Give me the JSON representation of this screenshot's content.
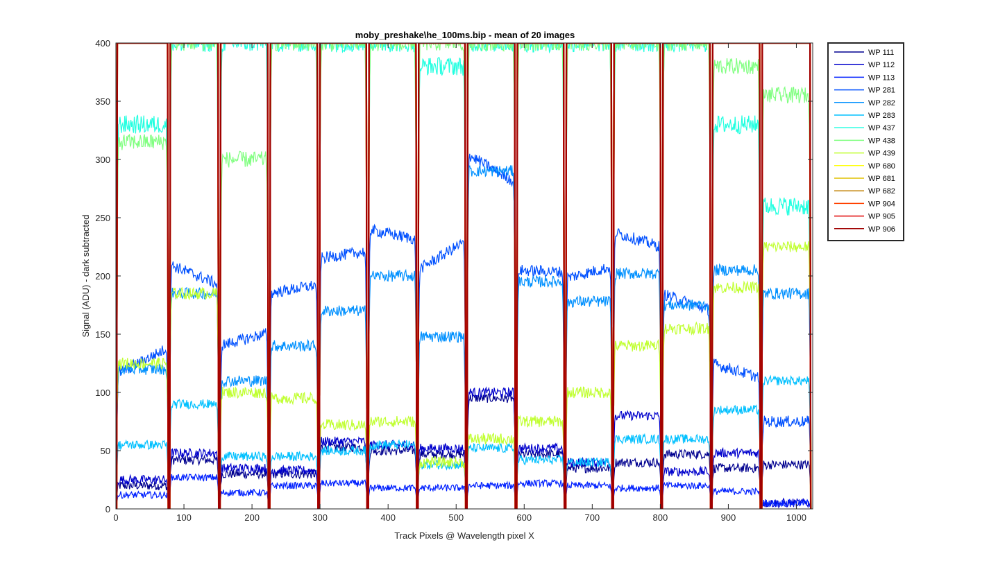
{
  "chart_data": {
    "type": "line",
    "title": "moby_preshake\\he_100ms.bip - mean of 20 images",
    "xlabel": "Track Pixels @ Wavelength pixel X",
    "ylabel": "Signal (ADU) - dark subtracted",
    "xlim": [
      0,
      1024
    ],
    "ylim": [
      0,
      400
    ],
    "xticks": [
      0,
      100,
      200,
      300,
      400,
      500,
      600,
      700,
      800,
      900,
      1000
    ],
    "yticks": [
      0,
      50,
      100,
      150,
      200,
      250,
      300,
      350,
      400
    ],
    "grid": false,
    "legend_position": "outside-right-top",
    "track_boundaries": [
      0,
      78,
      152,
      225,
      298,
      370,
      443,
      515,
      588,
      660,
      730,
      802,
      875,
      948,
      1022
    ],
    "series": [
      {
        "name": "WP 111",
        "color": "#00008f",
        "levels": [
          20,
          42,
          30,
          30,
          53,
          50,
          47,
          95,
          47,
          35,
          40,
          47,
          35,
          38
        ],
        "noise": 4
      },
      {
        "name": "WP 112",
        "color": "#0000cc",
        "levels": [
          25,
          48,
          35,
          33,
          58,
          55,
          52,
          100,
          52,
          40,
          80,
          32,
          48,
          5
        ],
        "noise": 4
      },
      {
        "name": "WP 113",
        "color": "#0020ff",
        "levels": [
          12,
          27,
          14,
          20,
          22,
          18,
          18,
          20,
          22,
          20,
          18,
          20,
          15,
          5
        ],
        "noise": 3
      },
      {
        "name": "WP 281",
        "color": "#0050ff",
        "levels": [
          115,
          210,
          140,
          185,
          215,
          240,
          205,
          305,
          205,
          198,
          238,
          185,
          125,
          75
        ],
        "noise": 5,
        "trend": true
      },
      {
        "name": "WP 282",
        "color": "#0090ff",
        "levels": [
          120,
          185,
          110,
          140,
          170,
          200,
          148,
          290,
          195,
          178,
          202,
          175,
          205,
          185
        ],
        "noise": 5
      },
      {
        "name": "WP 283",
        "color": "#00c0ff",
        "levels": [
          55,
          90,
          45,
          45,
          50,
          55,
          38,
          52,
          42,
          40,
          60,
          60,
          85,
          110
        ],
        "noise": 4
      },
      {
        "name": "WP 437",
        "color": "#20ffe0",
        "levels": [
          330,
          400,
          400,
          400,
          400,
          400,
          380,
          400,
          400,
          400,
          400,
          400,
          330,
          260
        ],
        "noise": 8
      },
      {
        "name": "WP 438",
        "color": "#80ff80",
        "levels": [
          315,
          400,
          300,
          400,
          400,
          400,
          400,
          400,
          400,
          400,
          400,
          400,
          380,
          355
        ],
        "noise": 7
      },
      {
        "name": "WP 439",
        "color": "#c0ff30",
        "levels": [
          125,
          185,
          100,
          95,
          72,
          75,
          40,
          60,
          75,
          100,
          140,
          155,
          190,
          225
        ],
        "noise": 5
      },
      {
        "name": "WP 680",
        "color": "#ffff00",
        "levels": [
          400,
          400,
          400,
          400,
          400,
          400,
          400,
          400,
          400,
          400,
          400,
          400,
          400,
          400
        ],
        "noise": 0
      },
      {
        "name": "WP 681",
        "color": "#e0c000",
        "levels": [
          400,
          400,
          400,
          400,
          400,
          400,
          400,
          400,
          400,
          400,
          400,
          400,
          400,
          400
        ],
        "noise": 0
      },
      {
        "name": "WP 682",
        "color": "#c08000",
        "levels": [
          400,
          400,
          400,
          400,
          400,
          400,
          400,
          400,
          400,
          400,
          400,
          400,
          400,
          400
        ],
        "noise": 0
      },
      {
        "name": "WP 904",
        "color": "#ff4000",
        "levels": [
          400,
          400,
          400,
          400,
          400,
          400,
          400,
          400,
          400,
          400,
          400,
          400,
          400,
          400
        ],
        "noise": 0
      },
      {
        "name": "WP 905",
        "color": "#e00000",
        "levels": [
          400,
          400,
          400,
          400,
          400,
          400,
          400,
          400,
          400,
          400,
          400,
          400,
          400,
          400
        ],
        "noise": 0
      },
      {
        "name": "WP 906",
        "color": "#a00000",
        "levels": [
          400,
          400,
          400,
          400,
          400,
          400,
          400,
          400,
          400,
          400,
          400,
          400,
          400,
          400
        ],
        "noise": 0
      }
    ]
  }
}
